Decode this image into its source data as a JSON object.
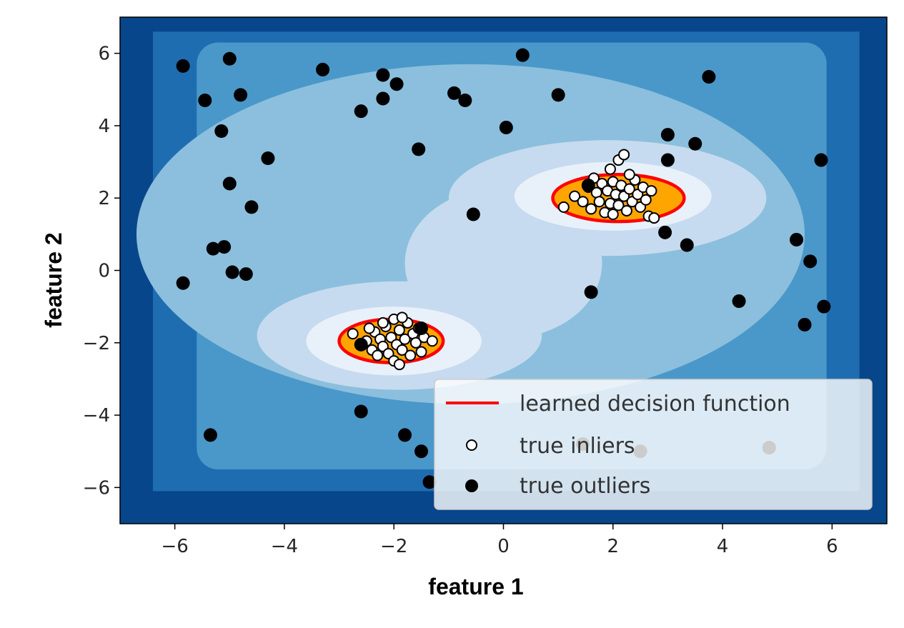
{
  "chart_data": {
    "type": "scatter",
    "xlabel": "feature 1",
    "ylabel": "feature 2",
    "xlim": [
      -7,
      7
    ],
    "ylim": [
      -7,
      7
    ],
    "xticks": [
      -6,
      -4,
      -2,
      0,
      2,
      4,
      6
    ],
    "yticks": [
      -6,
      -4,
      -2,
      0,
      2,
      4,
      6
    ],
    "xtick_labels": [
      "−6",
      "−4",
      "−2",
      "0",
      "2",
      "4",
      "6"
    ],
    "ytick_labels": [
      "−6",
      "−4",
      "−2",
      "0",
      "2",
      "4",
      "6"
    ],
    "grid": false,
    "legend_position": "lower-right",
    "background": "filled contour map of the learned decision function (blues colormap)",
    "colors": {
      "contour_levels": [
        "#08468b",
        "#1f6db1",
        "#4a98c9",
        "#8bbfdd",
        "#c6dbef",
        "#e8f1fa"
      ],
      "inside_region": "#ffa500",
      "decision_line": "#ff0000",
      "inlier_face": "#ffffff",
      "outlier_face": "#000000"
    },
    "legend": [
      {
        "label": "learned decision function",
        "marker": "line",
        "color": "#ff0000"
      },
      {
        "label": "true inliers",
        "marker": "hollow-circle",
        "color": "#ffffff"
      },
      {
        "label": "true outliers",
        "marker": "filled-circle",
        "color": "#000000"
      }
    ],
    "decision_regions": [
      {
        "center": [
          2.1,
          2.0
        ],
        "rx": 1.2,
        "ry": 0.65
      },
      {
        "center": [
          -2.05,
          -1.95
        ],
        "rx": 0.95,
        "ry": 0.6
      }
    ],
    "series": [
      {
        "name": "true inliers",
        "points": [
          [
            1.1,
            1.75
          ],
          [
            1.3,
            2.05
          ],
          [
            1.45,
            1.9
          ],
          [
            1.55,
            2.3
          ],
          [
            1.6,
            1.7
          ],
          [
            1.7,
            2.15
          ],
          [
            1.75,
            1.9
          ],
          [
            1.8,
            2.4
          ],
          [
            1.85,
            1.6
          ],
          [
            1.9,
            2.2
          ],
          [
            1.95,
            1.85
          ],
          [
            2.0,
            2.45
          ],
          [
            2.0,
            1.55
          ],
          [
            2.05,
            2.1
          ],
          [
            2.1,
            1.8
          ],
          [
            2.15,
            2.35
          ],
          [
            2.2,
            2.05
          ],
          [
            2.25,
            1.65
          ],
          [
            2.3,
            2.25
          ],
          [
            2.35,
            1.9
          ],
          [
            2.4,
            2.5
          ],
          [
            2.45,
            2.1
          ],
          [
            2.5,
            1.75
          ],
          [
            2.55,
            2.3
          ],
          [
            2.6,
            1.95
          ],
          [
            2.65,
            1.5
          ],
          [
            2.7,
            2.2
          ],
          [
            1.95,
            2.8
          ],
          [
            2.1,
            3.05
          ],
          [
            2.2,
            3.2
          ],
          [
            2.3,
            2.65
          ],
          [
            1.65,
            2.55
          ],
          [
            2.75,
            1.45
          ],
          [
            -2.75,
            -1.75
          ],
          [
            -2.5,
            -1.95
          ],
          [
            -2.4,
            -2.2
          ],
          [
            -2.35,
            -1.7
          ],
          [
            -2.3,
            -2.35
          ],
          [
            -2.25,
            -1.9
          ],
          [
            -2.2,
            -2.1
          ],
          [
            -2.15,
            -1.55
          ],
          [
            -2.1,
            -2.3
          ],
          [
            -2.05,
            -1.85
          ],
          [
            -2.0,
            -1.35
          ],
          [
            -2.0,
            -2.5
          ],
          [
            -1.95,
            -2.05
          ],
          [
            -1.9,
            -1.65
          ],
          [
            -1.85,
            -2.2
          ],
          [
            -1.8,
            -1.9
          ],
          [
            -1.75,
            -1.45
          ],
          [
            -1.7,
            -2.35
          ],
          [
            -1.65,
            -1.75
          ],
          [
            -1.6,
            -2.0
          ],
          [
            -1.55,
            -1.6
          ],
          [
            -1.5,
            -2.25
          ],
          [
            -1.45,
            -1.85
          ],
          [
            -1.3,
            -1.95
          ],
          [
            -2.2,
            -1.45
          ],
          [
            -1.9,
            -2.6
          ],
          [
            -2.45,
            -1.6
          ],
          [
            -1.85,
            -1.3
          ]
        ]
      },
      {
        "name": "true outliers",
        "points": [
          [
            -5.85,
            5.65
          ],
          [
            -5.0,
            5.85
          ],
          [
            -3.3,
            5.55
          ],
          [
            -2.2,
            5.4
          ],
          [
            -1.95,
            5.15
          ],
          [
            0.35,
            5.95
          ],
          [
            3.75,
            5.35
          ],
          [
            -5.45,
            4.7
          ],
          [
            -4.8,
            4.85
          ],
          [
            -2.6,
            4.4
          ],
          [
            -2.2,
            4.75
          ],
          [
            -0.9,
            4.9
          ],
          [
            -0.7,
            4.7
          ],
          [
            1.0,
            4.85
          ],
          [
            -5.15,
            3.85
          ],
          [
            0.05,
            3.95
          ],
          [
            3.0,
            3.75
          ],
          [
            3.5,
            3.5
          ],
          [
            -4.3,
            3.1
          ],
          [
            -1.55,
            3.35
          ],
          [
            3.0,
            3.05
          ],
          [
            5.8,
            3.05
          ],
          [
            -5.0,
            2.4
          ],
          [
            -4.6,
            1.75
          ],
          [
            -0.55,
            1.55
          ],
          [
            2.95,
            1.05
          ],
          [
            3.35,
            0.7
          ],
          [
            -5.3,
            0.6
          ],
          [
            -5.1,
            0.65
          ],
          [
            5.35,
            0.85
          ],
          [
            -4.95,
            -0.05
          ],
          [
            -4.7,
            -0.1
          ],
          [
            5.6,
            0.25
          ],
          [
            -5.85,
            -0.35
          ],
          [
            1.6,
            -0.6
          ],
          [
            4.3,
            -0.85
          ],
          [
            5.85,
            -1.0
          ],
          [
            5.5,
            -1.5
          ],
          [
            -2.6,
            -3.9
          ],
          [
            -5.35,
            -4.55
          ],
          [
            -1.8,
            -4.55
          ],
          [
            -1.5,
            -5.0
          ],
          [
            -1.35,
            -5.85
          ],
          [
            1.45,
            -4.8
          ],
          [
            2.5,
            -5.0
          ],
          [
            4.85,
            -4.9
          ],
          [
            1.55,
            2.35
          ],
          [
            -1.5,
            -1.6
          ],
          [
            -2.6,
            -2.05
          ]
        ]
      }
    ]
  }
}
